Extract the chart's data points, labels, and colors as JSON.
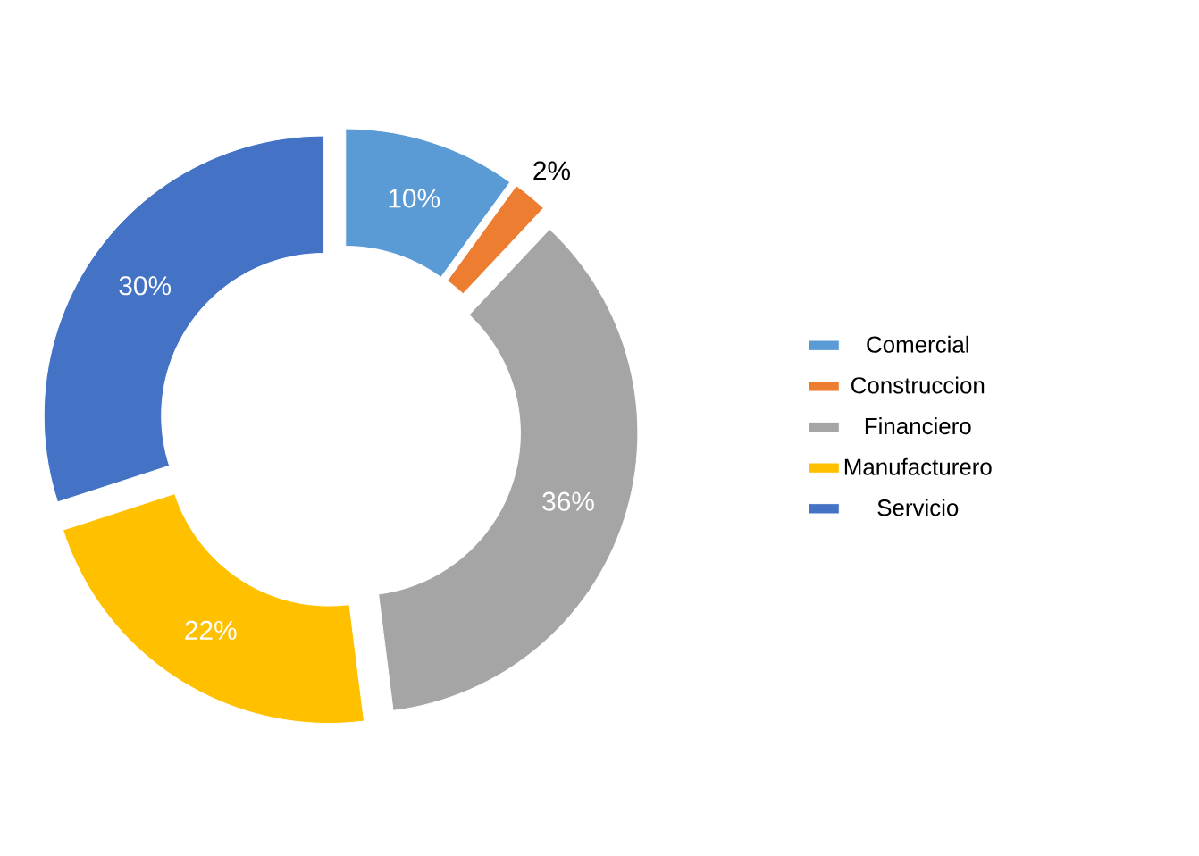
{
  "chart_data": {
    "type": "donut",
    "categories": [
      "Comercial",
      "Construccion",
      "Financiero",
      "Manufacturero",
      "Servicio"
    ],
    "values": [
      10,
      2,
      36,
      22,
      30
    ],
    "colors": [
      "#5b9bd5",
      "#ed7d31",
      "#a5a5a5",
      "#ffc000",
      "#4472c4"
    ],
    "value_labels": [
      "10%",
      "2%",
      "36%",
      "22%",
      "30%"
    ],
    "legend": "right"
  }
}
